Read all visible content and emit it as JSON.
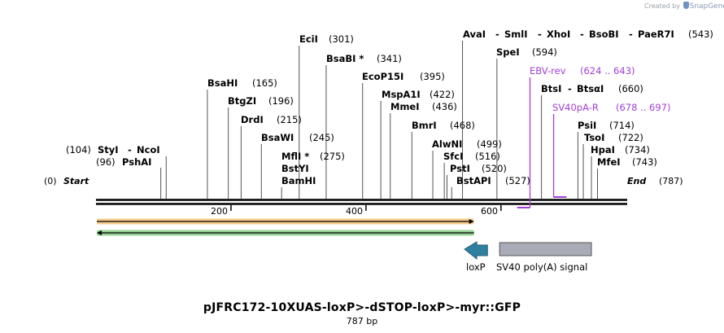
{
  "credit": {
    "prefix": "Created by",
    "brand": "SnapGene"
  },
  "plasmid": {
    "name": "pJFRC172-10XUAS-loxP>-dSTOP-loxP>-myr::GFP",
    "length_label": "787 bp",
    "length": 787
  },
  "ends": {
    "start": "Start",
    "start_pos": "(0)",
    "end": "End",
    "end_pos": "(787)"
  },
  "ruler": {
    "ticks": [
      200,
      400,
      600
    ]
  },
  "sites": [
    {
      "name": "StyI",
      "pos": "(104)",
      "coord": 104
    },
    {
      "name": "NcoI",
      "coord": 104
    },
    {
      "name": "PshAI",
      "pos": "(96)",
      "coord": 96
    },
    {
      "name": "BsaHI",
      "pos": "(165)",
      "coord": 165
    },
    {
      "name": "BtgZI",
      "pos": "(196)",
      "coord": 196
    },
    {
      "name": "DrdI",
      "pos": "(215)",
      "coord": 215
    },
    {
      "name": "BsaWI",
      "pos": "(245)",
      "coord": 245
    },
    {
      "name": "MflI *",
      "pos": "(275)",
      "coord": 275
    },
    {
      "name": "BstYI",
      "coord": 275
    },
    {
      "name": "BamHI",
      "coord": 275
    },
    {
      "name": "EciI",
      "pos": "(301)",
      "coord": 301
    },
    {
      "name": "BsaBI *",
      "pos": "(341)",
      "coord": 341
    },
    {
      "name": "EcoP15I",
      "pos": "(395)",
      "coord": 395
    },
    {
      "name": "MspA1I",
      "pos": "(422)",
      "coord": 422
    },
    {
      "name": "MmeI",
      "pos": "(436)",
      "coord": 436
    },
    {
      "name": "BmrI",
      "pos": "(468)",
      "coord": 468
    },
    {
      "name": "AlwNI",
      "pos": "(499)",
      "coord": 499
    },
    {
      "name": "SfcI",
      "pos": "(516)",
      "coord": 516
    },
    {
      "name": "PstI",
      "pos": "(520)",
      "coord": 520
    },
    {
      "name": "BstAPI",
      "pos": "(527)",
      "coord": 527
    },
    {
      "name": "AvaI",
      "coord": 543
    },
    {
      "name": "SmlI",
      "coord": 543
    },
    {
      "name": "XhoI",
      "coord": 543
    },
    {
      "name": "BsoBI",
      "coord": 543
    },
    {
      "name": "PaeR7I",
      "pos": "(543)",
      "coord": 543
    },
    {
      "name": "SpeI",
      "pos": "(594)",
      "coord": 594
    },
    {
      "name": "BtsI",
      "coord": 660
    },
    {
      "name": "BtsαI",
      "pos": "(660)",
      "coord": 660
    },
    {
      "name": "PsiI",
      "pos": "(714)",
      "coord": 714
    },
    {
      "name": "TsoI",
      "pos": "(722)",
      "coord": 722
    },
    {
      "name": "HpaI",
      "pos": "(734)",
      "coord": 734
    },
    {
      "name": "MfeI",
      "pos": "(743)",
      "coord": 743
    }
  ],
  "primers": [
    {
      "name": "EBV-rev",
      "range": "(624 .. 643)",
      "start": 624,
      "end": 643
    },
    {
      "name": "SV40pA-R",
      "range": "(678 .. 697)",
      "start": 678,
      "end": 697
    }
  ],
  "features": [
    {
      "name": "loxP",
      "start": 546,
      "end": 580,
      "direction": "reverse",
      "color": "#2f7fa0"
    },
    {
      "name": "SV40 poly(A) signal",
      "start": 598,
      "end": 734,
      "direction": "none",
      "color": "#a9acb6"
    }
  ],
  "orfs": [
    {
      "start": 0,
      "end": 560,
      "direction": "forward",
      "color": "#f0a32b"
    },
    {
      "start": 0,
      "end": 560,
      "direction": "reverse",
      "color": "#3fae3f"
    }
  ],
  "colors": {
    "primer": "#a13fd6",
    "line": "#000000",
    "feature_line": "#555555"
  }
}
